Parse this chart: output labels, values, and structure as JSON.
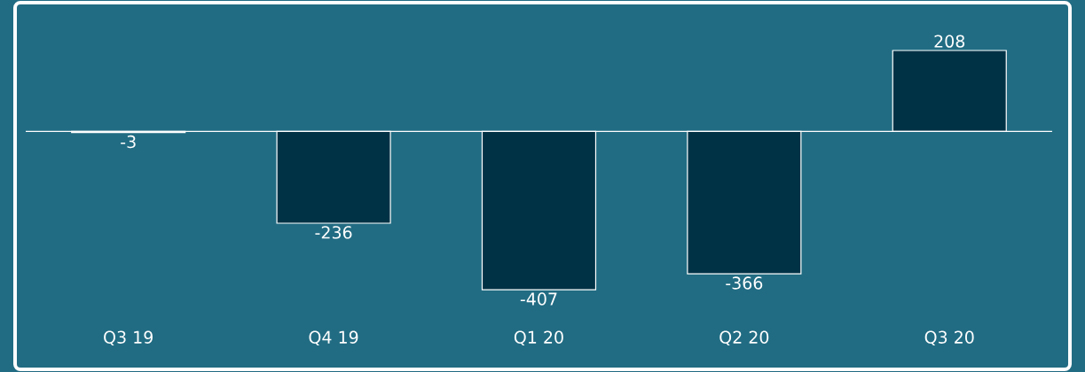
{
  "chart_data": {
    "type": "bar",
    "categories": [
      "Q3 19",
      "Q4 19",
      "Q1 20",
      "Q2 20",
      "Q3 20"
    ],
    "values": [
      -3,
      -236,
      -407,
      -366,
      208
    ],
    "color": "#003246",
    "data_labels": true
  }
}
